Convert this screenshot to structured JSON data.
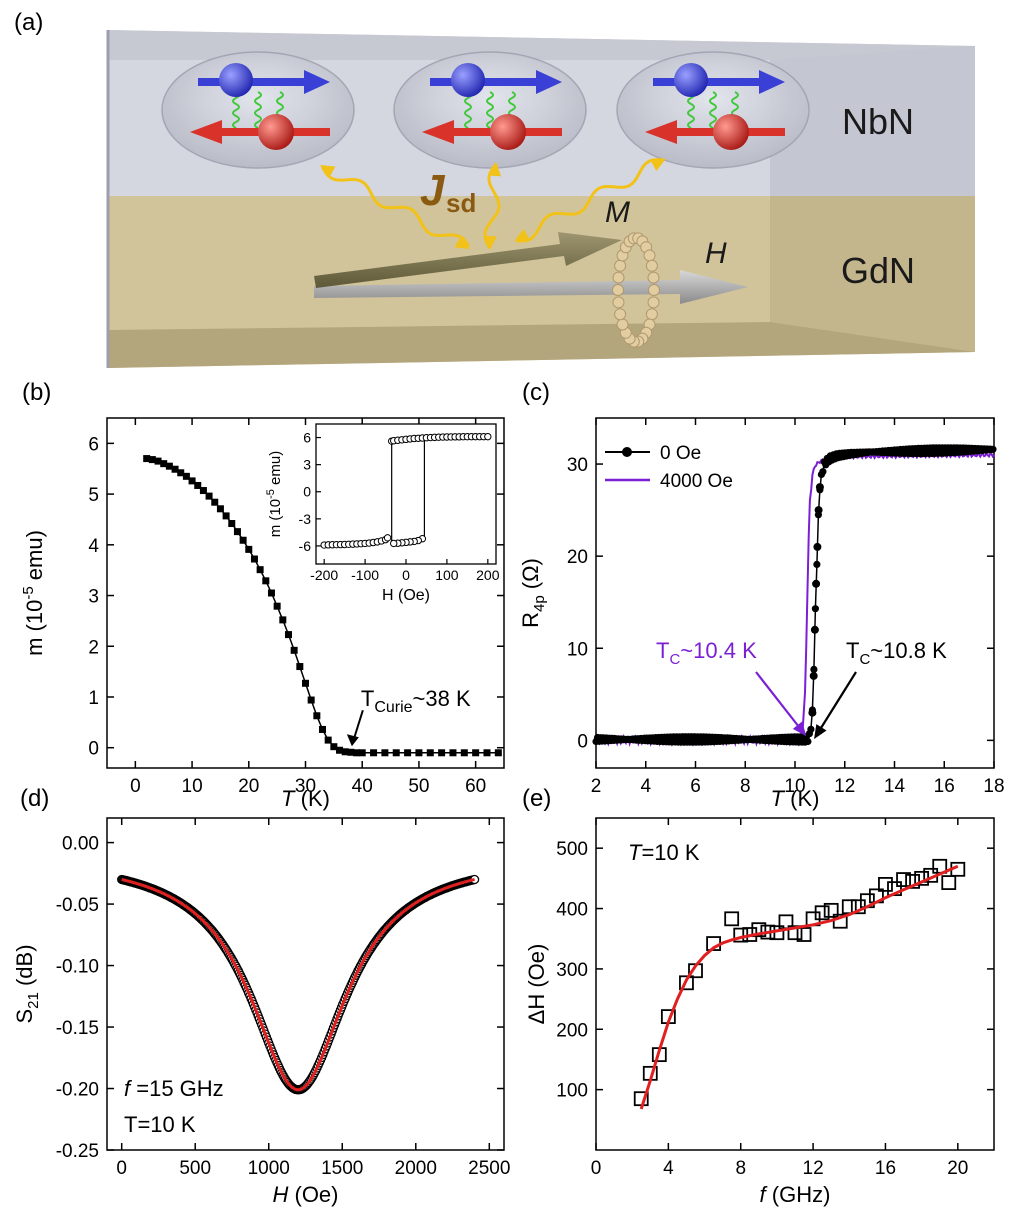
{
  "panel_labels": {
    "a": "(a)",
    "b": "(b)",
    "c": "(c)",
    "d": "(d)",
    "e": "(e)"
  },
  "schematic": {
    "layer_top": "NbN",
    "layer_bottom": "GdN",
    "coupling_symbol": "J",
    "coupling_subscript": "sd",
    "magnetization_label": "M",
    "field_label": "H",
    "colors": {
      "nbn": "#d2d4de",
      "gdn": "#cdbd90",
      "spin_up": "#3a3fd6",
      "spin_down": "#d8322a",
      "wave": "#f2c218",
      "jsd": "#8a5a12"
    }
  },
  "chart_data": [
    {
      "panel": "b",
      "type": "line",
      "xlabel": "T (K)",
      "ylabel": "m (10^-5 emu)",
      "xlim": [
        -5,
        65
      ],
      "ylim": [
        -0.4,
        6.5
      ],
      "xticks": [
        0,
        10,
        20,
        30,
        40,
        50,
        60
      ],
      "yticks": [
        0,
        1,
        2,
        3,
        4,
        5,
        6
      ],
      "marker": "filled-square",
      "series": [
        {
          "x": [
            2,
            3,
            4,
            5,
            6,
            7,
            8,
            9,
            10,
            11,
            12,
            13,
            14,
            15,
            16,
            17,
            18,
            19,
            20,
            21,
            22,
            23,
            24,
            25,
            26,
            27,
            28,
            29,
            30,
            31,
            32,
            33,
            34,
            35,
            36,
            37,
            38,
            39,
            40,
            42,
            44,
            46,
            48,
            50,
            52,
            54,
            56,
            58,
            60,
            62,
            64
          ],
          "y": [
            5.7,
            5.68,
            5.65,
            5.6,
            5.55,
            5.49,
            5.42,
            5.35,
            5.26,
            5.17,
            5.07,
            4.96,
            4.84,
            4.71,
            4.57,
            4.42,
            4.26,
            4.09,
            3.91,
            3.72,
            3.51,
            3.29,
            3.05,
            2.79,
            2.52,
            2.23,
            1.92,
            1.6,
            1.27,
            0.94,
            0.63,
            0.36,
            0.15,
            0.02,
            -0.05,
            -0.08,
            -0.09,
            -0.1,
            -0.1,
            -0.1,
            -0.1,
            -0.1,
            -0.1,
            -0.1,
            -0.1,
            -0.1,
            -0.1,
            -0.1,
            -0.1,
            -0.1,
            -0.1
          ]
        }
      ],
      "annotation": {
        "text": "T",
        "subscript": "Curie",
        "suffix": "~38 K",
        "x": 38,
        "y": -0.05
      },
      "inset": {
        "type": "scatter",
        "xlabel": "H (Oe)",
        "ylabel": "m (10^-5 emu)",
        "xlim": [
          -220,
          220
        ],
        "ylim": [
          -8,
          7.5
        ],
        "xticks": [
          -200,
          -100,
          0,
          100,
          200
        ],
        "yticks": [
          -6,
          -3,
          0,
          3,
          6
        ],
        "marker": "open-circle",
        "upper_branch": {
          "x": [
            -200,
            -190,
            -180,
            -170,
            -160,
            -150,
            -140,
            -130,
            -120,
            -110,
            -100,
            -90,
            -80,
            -70,
            -60,
            -50,
            -45
          ],
          "y": [
            -5.9,
            -5.88,
            -5.87,
            -5.86,
            -5.85,
            -5.84,
            -5.82,
            -5.8,
            -5.78,
            -5.75,
            -5.72,
            -5.68,
            -5.62,
            -5.55,
            -5.45,
            -5.3,
            -5.1
          ]
        },
        "upper_return": {
          "x": [
            -35,
            -30,
            -20,
            -10,
            0,
            10,
            20,
            30,
            40,
            50,
            60,
            70,
            80,
            90,
            100,
            110,
            120,
            130,
            140,
            150,
            160,
            170,
            180,
            190,
            200
          ],
          "y": [
            5.6,
            5.65,
            5.7,
            5.75,
            5.8,
            5.85,
            5.9,
            5.92,
            5.95,
            5.98,
            6.0,
            6.02,
            6.04,
            6.05,
            6.06,
            6.07,
            6.08,
            6.08,
            6.09,
            6.09,
            6.1,
            6.1,
            6.1,
            6.1,
            6.1
          ]
        },
        "lower_branch": {
          "x": [
            40,
            30,
            20,
            10,
            0,
            -10,
            -20,
            -30
          ],
          "y": [
            -5.2,
            -5.4,
            -5.5,
            -5.55,
            -5.6,
            -5.65,
            -5.7,
            -5.72
          ]
        },
        "switch_down_H": 45,
        "switch_up_H": -35
      }
    },
    {
      "panel": "c",
      "type": "line",
      "xlabel": "T (K)",
      "ylabel": "R_4p (Ω)",
      "xlim": [
        2,
        18
      ],
      "ylim": [
        -3,
        35
      ],
      "xticks": [
        2,
        4,
        6,
        8,
        10,
        12,
        14,
        16,
        18
      ],
      "yticks": [
        0,
        10,
        20,
        30
      ],
      "legend_position": "top-left",
      "series": [
        {
          "name": "0 Oe",
          "color": "#000000",
          "marker": "filled-circle",
          "x": [
            2,
            10.5,
            10.6,
            10.7,
            10.75,
            10.8,
            10.85,
            10.9,
            10.95,
            11.0,
            11.1,
            11.2,
            11.4,
            11.7,
            12.2,
            13,
            18
          ],
          "y": [
            0.1,
            0.1,
            0.5,
            3,
            7,
            12,
            17,
            21,
            25,
            27.5,
            29.3,
            30.1,
            30.6,
            30.9,
            31.1,
            31.3,
            31.6
          ]
        },
        {
          "name": "4000 Oe",
          "color": "#7b1fd4",
          "marker": "none",
          "x": [
            2,
            10.2,
            10.3,
            10.4,
            10.45,
            10.5,
            10.55,
            10.6,
            10.7,
            10.8,
            11.0,
            11.4,
            12,
            18
          ],
          "y": [
            0.0,
            0.0,
            1,
            5,
            10,
            16,
            22,
            26,
            28.8,
            29.8,
            30.3,
            30.6,
            30.8,
            31.0
          ]
        }
      ],
      "annotations": [
        {
          "text": "T",
          "subscript": "C",
          "suffix": "~10.4 K",
          "color": "#7b1fd4",
          "x": 10.35,
          "y": 0.8
        },
        {
          "text": "T",
          "subscript": "C",
          "suffix": "~10.8 K",
          "color": "#000000",
          "x": 10.85,
          "y": 0.5
        }
      ]
    },
    {
      "panel": "d",
      "type": "line",
      "xlabel": "H (Oe)",
      "ylabel": "S_21 (dB)",
      "xlim": [
        -100,
        2600
      ],
      "ylim": [
        -0.25,
        0.02
      ],
      "xticks": [
        0,
        500,
        1000,
        1500,
        2000,
        2500
      ],
      "yticks": [
        0.0,
        -0.05,
        -0.1,
        -0.15,
        -0.2,
        -0.25
      ],
      "series": [
        {
          "name": "data",
          "marker": "open-circle",
          "color": "#000000",
          "x_start": 0,
          "x_end": 2400
        },
        {
          "name": "fit",
          "marker": "none",
          "color": "#e02020",
          "x_start": 0,
          "x_end": 2400
        }
      ],
      "lorentzian": {
        "baseline": -0.027,
        "depth": 0.19,
        "center": 1200,
        "halfwidth": 400
      },
      "text": [
        "f =15 GHz",
        "T=10 K"
      ]
    },
    {
      "panel": "e",
      "type": "scatter",
      "xlabel": "f (GHz)",
      "ylabel": "ΔH (Oe)",
      "xlim": [
        0,
        22
      ],
      "ylim": [
        0,
        550
      ],
      "xticks": [
        0,
        4,
        8,
        12,
        16,
        20
      ],
      "yticks": [
        100,
        200,
        300,
        400,
        500
      ],
      "series": [
        {
          "name": "data",
          "marker": "open-square",
          "color": "#000000",
          "x": [
            2.5,
            3.0,
            3.5,
            4.0,
            5.0,
            5.5,
            6.5,
            7.5,
            8.0,
            8.5,
            9.0,
            9.5,
            10.0,
            10.5,
            11.0,
            11.5,
            12.0,
            12.5,
            13.0,
            13.5,
            14.0,
            14.5,
            15.0,
            15.5,
            16.0,
            16.5,
            17.0,
            17.5,
            18.0,
            18.5,
            19.0,
            19.5,
            20.0
          ],
          "y": [
            85,
            127,
            158,
            221,
            277,
            297,
            342,
            383,
            356,
            357,
            365,
            361,
            360,
            378,
            360,
            357,
            383,
            393,
            397,
            379,
            403,
            403,
            413,
            421,
            440,
            433,
            448,
            445,
            450,
            455,
            470,
            443,
            465
          ]
        },
        {
          "name": "fit",
          "marker": "none",
          "color": "#e02020",
          "x": [
            2.5,
            3,
            3.5,
            4,
            4.5,
            5,
            5.5,
            6,
            6.5,
            7,
            7.5,
            8,
            9,
            10,
            11,
            12,
            13,
            14,
            15,
            16,
            17,
            18,
            19,
            20
          ],
          "y": [
            68,
            115,
            165,
            212,
            250,
            282,
            305,
            322,
            335,
            343,
            348,
            352,
            358,
            363,
            368,
            373,
            380,
            390,
            403,
            418,
            431,
            444,
            457,
            470
          ]
        }
      ],
      "text": [
        "T=10 K"
      ]
    }
  ]
}
